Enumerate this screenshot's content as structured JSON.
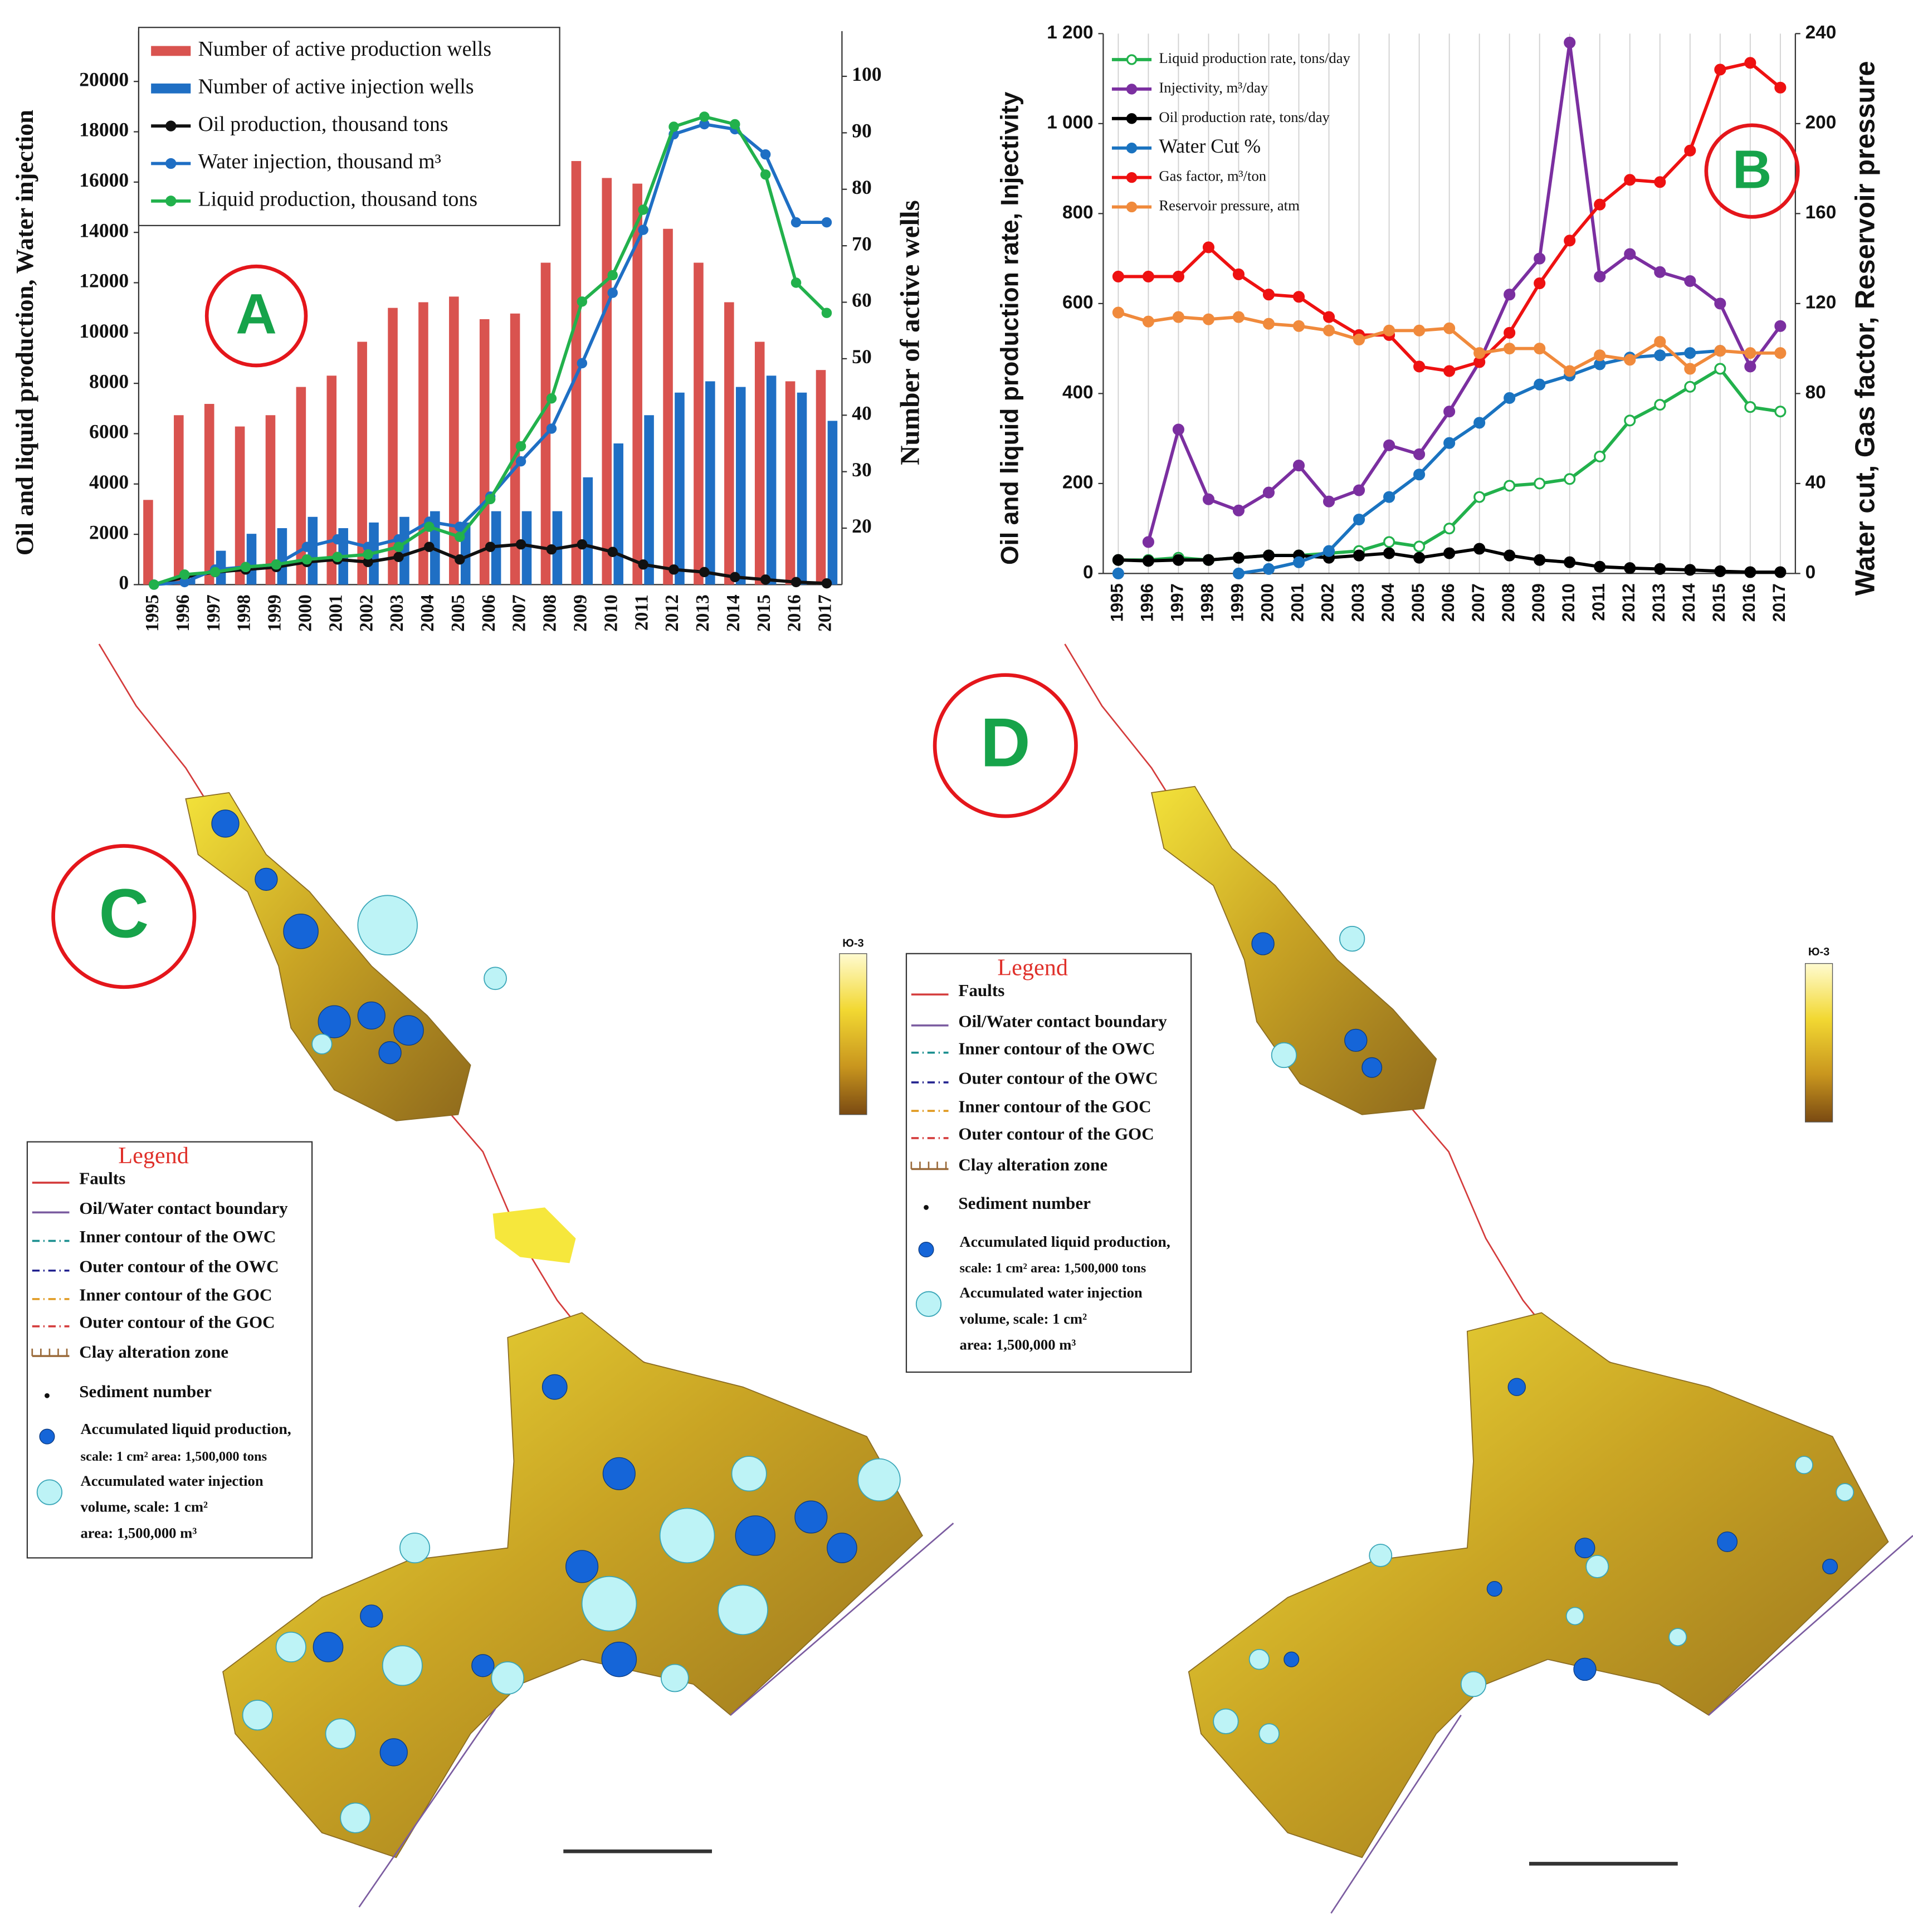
{
  "panels": [
    "A",
    "B",
    "C",
    "D"
  ],
  "chart_data": [
    {
      "type": "bar",
      "y_label": "Oil and liquid production,  Water injection",
      "y2_label": "Number of active wells",
      "categories": [
        "1995",
        "1996",
        "1997",
        "1998",
        "1999",
        "2000",
        "2001",
        "2002",
        "2003",
        "2004",
        "2005",
        "2006",
        "2007",
        "2008",
        "2009",
        "2010",
        "2011",
        "2012",
        "2013",
        "2014",
        "2015",
        "2016",
        "2017"
      ],
      "ylim": [
        0,
        22000
      ],
      "yticks": [
        0,
        2000,
        4000,
        6000,
        8000,
        10000,
        12000,
        14000,
        16000,
        18000,
        20000
      ],
      "y2lim": [
        10,
        108
      ],
      "y2ticks": [
        20,
        30,
        40,
        50,
        60,
        70,
        80,
        90,
        100
      ],
      "legend": "top-left",
      "series": [
        {
          "name": "Number of active production wells",
          "type": "bar",
          "axis": "y2",
          "color": "#d9534f",
          "values": [
            25,
            40,
            42,
            38,
            40,
            45,
            47,
            53,
            59,
            60,
            61,
            57,
            58,
            67,
            85,
            82,
            81,
            73,
            67,
            60,
            53,
            46,
            48
          ]
        },
        {
          "name": "Number of active injection wells",
          "type": "bar",
          "axis": "y2",
          "color": "#1f6fc4",
          "values": [
            null,
            11,
            16,
            19,
            20,
            22,
            20,
            21,
            22,
            23,
            21,
            23,
            23,
            23,
            29,
            35,
            40,
            44,
            46,
            45,
            47,
            44,
            39
          ]
        },
        {
          "name": "Oil production, thousand tons",
          "type": "line",
          "color": "#111111",
          "values": [
            0,
            300,
            500,
            600,
            700,
            900,
            1000,
            900,
            1100,
            1500,
            1000,
            1500,
            1600,
            1400,
            1600,
            1300,
            800,
            600,
            500,
            300,
            200,
            100,
            50
          ]
        },
        {
          "name": "Water injection, thousand m³",
          "type": "line",
          "color": "#1f6fc4",
          "values": [
            0,
            100,
            600,
            700,
            800,
            1500,
            1800,
            1500,
            1800,
            2500,
            2300,
            3500,
            4900,
            6200,
            8800,
            11600,
            14100,
            17900,
            18300,
            18100,
            17100,
            14400,
            14400
          ]
        },
        {
          "name": "Liquid production, thousand tons",
          "type": "line",
          "color": "#22b14c",
          "values": [
            0,
            400,
            500,
            700,
            800,
            1000,
            1100,
            1200,
            1500,
            2300,
            1900,
            3400,
            5500,
            7400,
            11250,
            12300,
            14900,
            18200,
            18600,
            18300,
            16300,
            12000,
            10800
          ]
        }
      ]
    },
    {
      "type": "line",
      "y_label": "Oil and liquid production rate, Injectivity",
      "y2_label": "Water cut, Gas factor, Reservoir pressure",
      "categories": [
        "1995",
        "1996",
        "1997",
        "1998",
        "1999",
        "2000",
        "2001",
        "2002",
        "2003",
        "2004",
        "2005",
        "2006",
        "2007",
        "2008",
        "2009",
        "2010",
        "2011",
        "2012",
        "2013",
        "2014",
        "2015",
        "2016",
        "2017"
      ],
      "ylim": [
        0,
        1200
      ],
      "yticks": [
        0,
        200,
        400,
        600,
        800,
        {
          "value": 1000,
          "label": "1 000"
        },
        {
          "value": 1200,
          "label": "1 200"
        }
      ],
      "y2lim": [
        0,
        240
      ],
      "y2ticks": [
        0,
        40,
        80,
        120,
        160,
        200,
        240
      ],
      "grid": true,
      "legend": "top-left",
      "series": [
        {
          "name": "Liquid production rate, tons/day",
          "type": "line",
          "color": "#22b14c",
          "hollow": true,
          "values": [
            30,
            30,
            35,
            30,
            35,
            40,
            40,
            45,
            50,
            70,
            60,
            100,
            170,
            195,
            200,
            210,
            260,
            340,
            375,
            415,
            455,
            370,
            360
          ]
        },
        {
          "name": "Injectivity, m³/day",
          "type": "line",
          "color": "#7b2fa0",
          "values": [
            null,
            70,
            320,
            165,
            140,
            180,
            240,
            160,
            185,
            285,
            265,
            360,
            470,
            620,
            700,
            1180,
            660,
            710,
            670,
            650,
            600,
            460,
            550
          ]
        },
        {
          "name": "Oil production rate, tons/day",
          "type": "line",
          "color": "#000000",
          "values": [
            30,
            28,
            30,
            30,
            35,
            40,
            40,
            35,
            40,
            45,
            35,
            45,
            55,
            40,
            30,
            25,
            15,
            12,
            10,
            8,
            5,
            3,
            3
          ]
        },
        {
          "name": "Water Cut %",
          "type": "line",
          "axis": "y2",
          "color": "#1a73c0",
          "values": [
            0,
            null,
            null,
            null,
            0,
            2,
            5,
            10,
            24,
            34,
            44,
            58,
            67,
            78,
            84,
            88,
            93,
            96,
            97,
            98,
            99,
            null,
            null
          ]
        },
        {
          "name": "Gas factor, m³/ton",
          "type": "line",
          "axis": "y2",
          "color": "#ee1111",
          "values": [
            132,
            132,
            132,
            145,
            133,
            124,
            123,
            114,
            106,
            106,
            92,
            90,
            94,
            107,
            129,
            148,
            164,
            175,
            174,
            188,
            224,
            227,
            216
          ]
        },
        {
          "name": "Reservoir pressure, atm",
          "type": "line",
          "axis": "y2",
          "color": "#f08a3c",
          "values": [
            116,
            112,
            114,
            113,
            114,
            111,
            110,
            108,
            104,
            108,
            108,
            109,
            98,
            100,
            100,
            90,
            97,
            95,
            103,
            91,
            99,
            98,
            98
          ]
        }
      ]
    }
  ],
  "maps": {
    "colorbar_label": "Ю-3",
    "legend": {
      "title": "Legend",
      "items": [
        "Faults",
        "Oil/Water contact boundary",
        "Inner contour of the OWC",
        "Outer contour of the OWC",
        "Inner contour of the GOC",
        "Outer contour of the GOC",
        "Clay alteration zone",
        "Sediment number"
      ],
      "liquid": [
        "Accumulated liquid production,",
        "scale: 1 cm² area: 1,500,000 tons"
      ],
      "injection": [
        "Accumulated water injection",
        "volume, scale: 1 cm²",
        "area: 1,500,000 m³"
      ]
    }
  }
}
